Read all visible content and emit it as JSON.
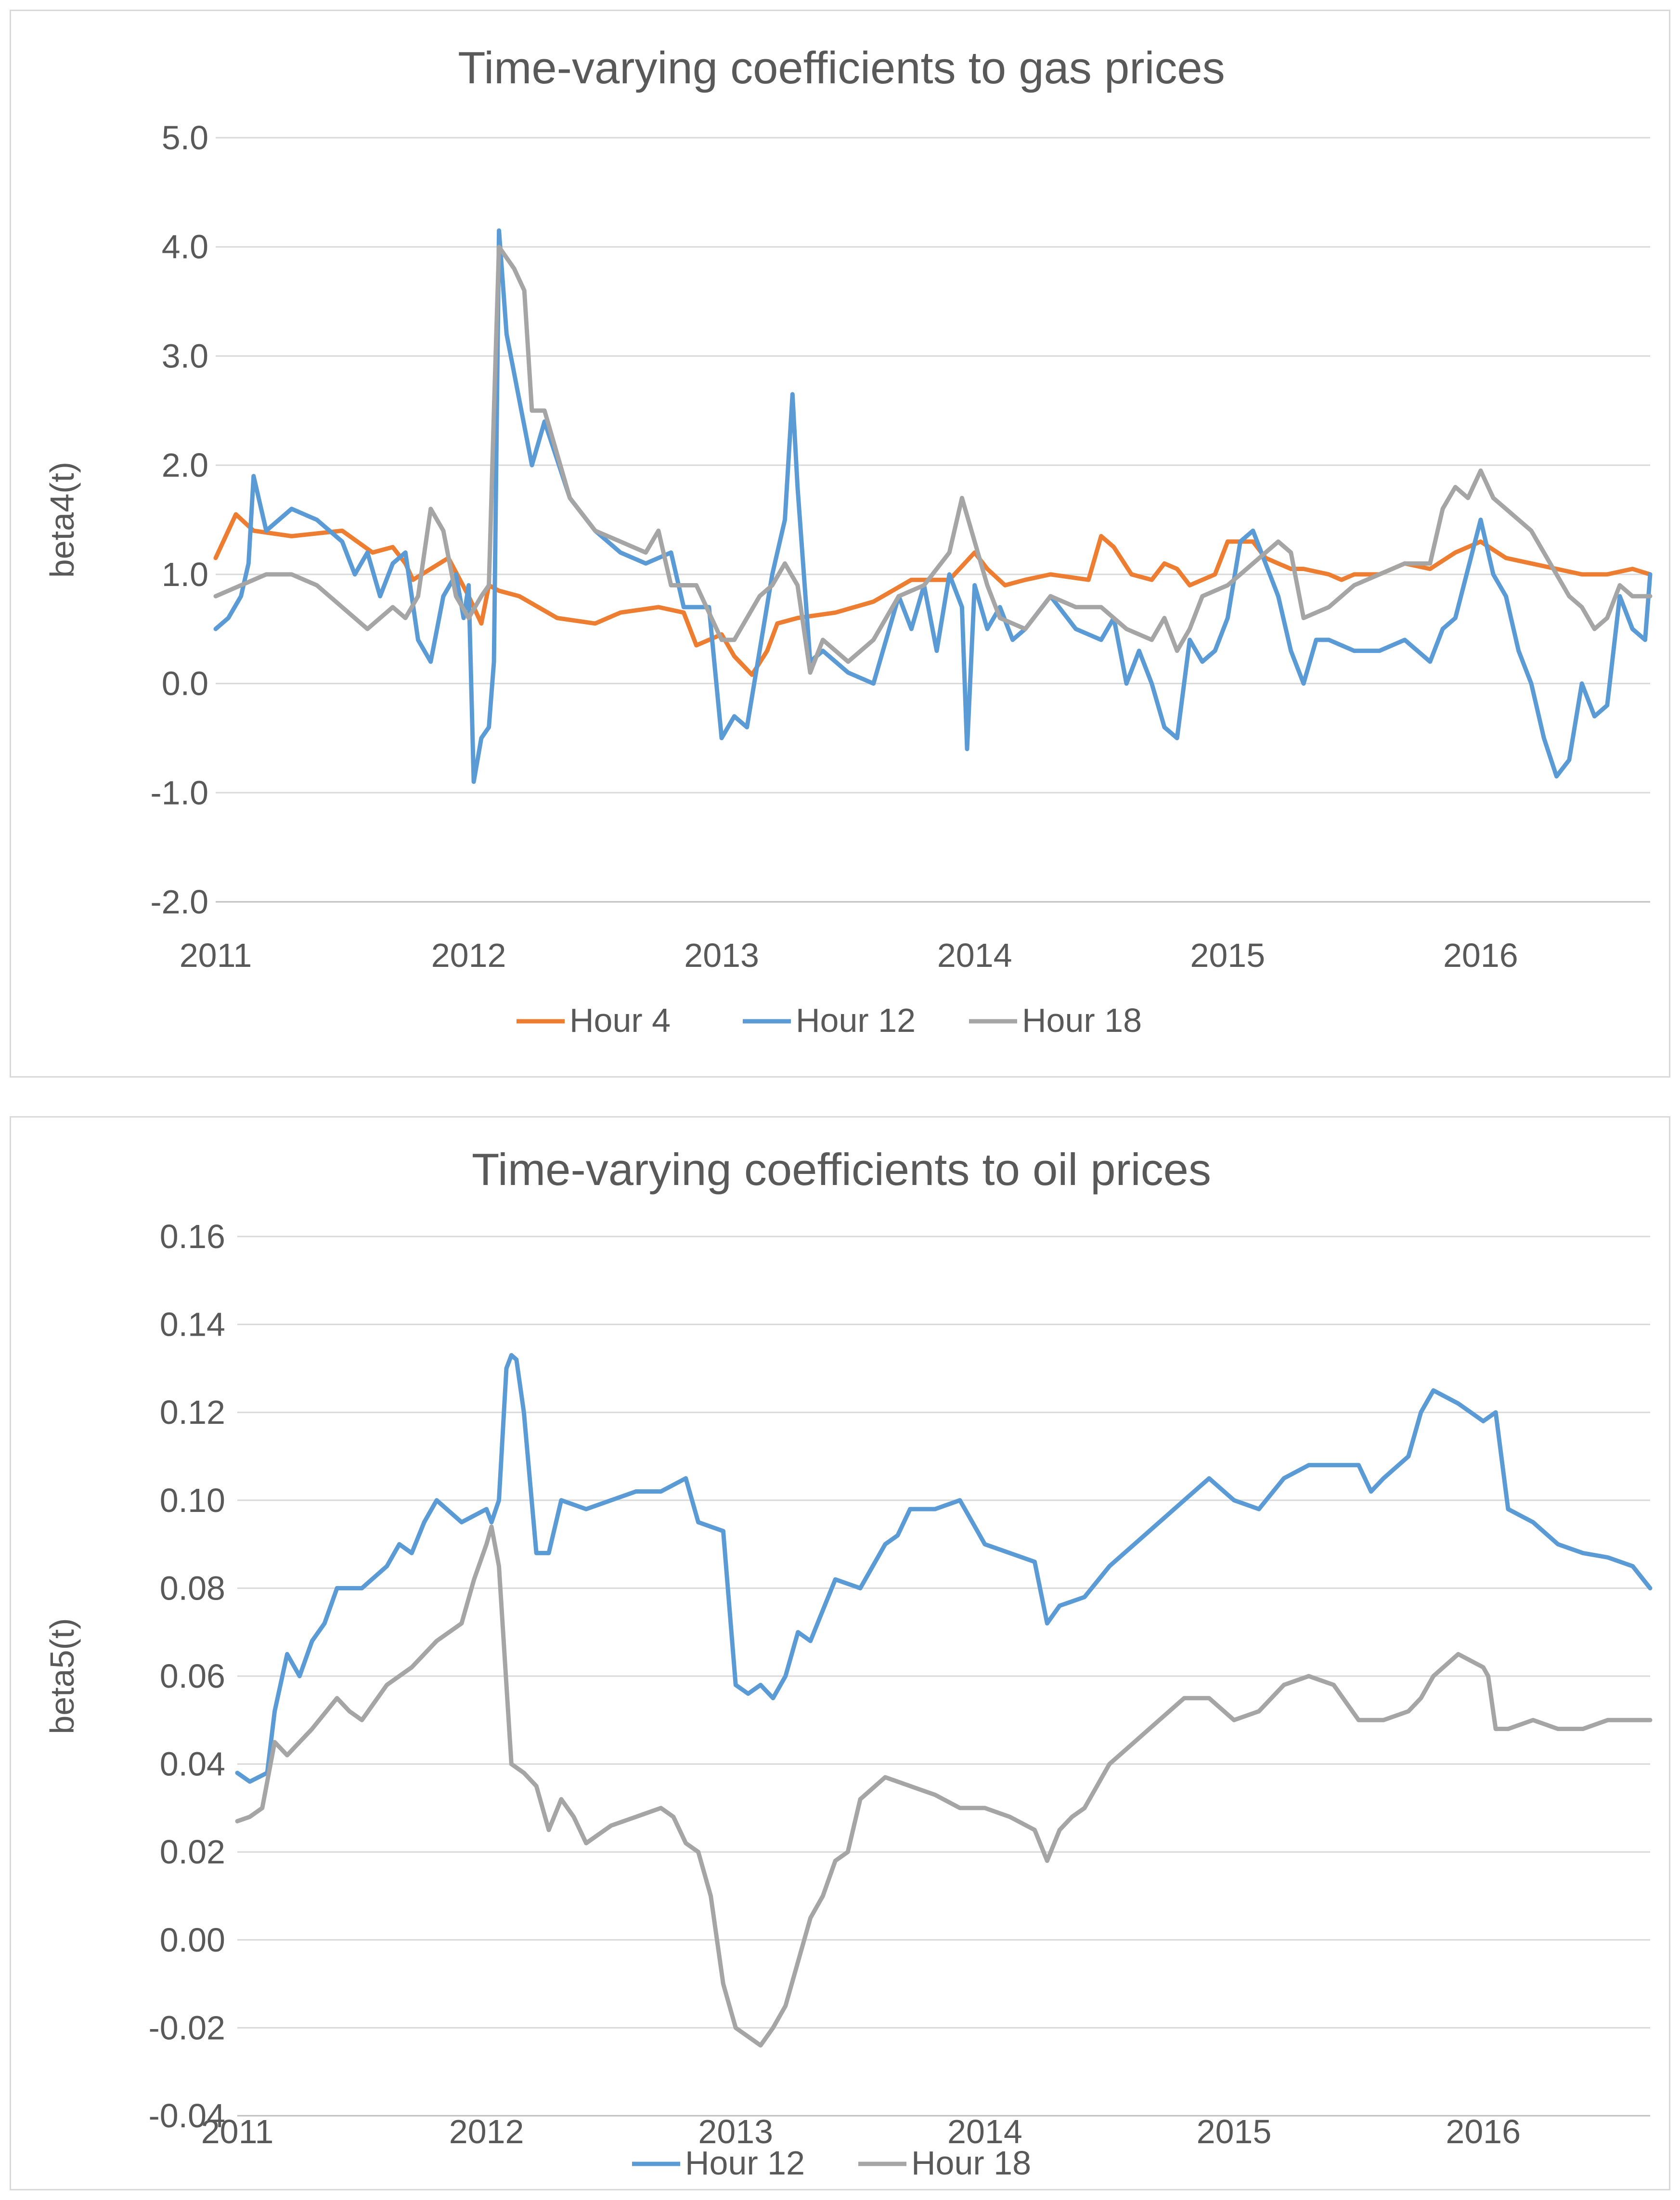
{
  "chart_data": [
    {
      "type": "line",
      "title": "Time-varying coefficients to gas prices",
      "xlabel": "",
      "ylabel": "beta4(t)",
      "ylim": [
        -2.0,
        5.0
      ],
      "yticks": [
        "5.0",
        "4.0",
        "3.0",
        "2.0",
        "1.0",
        "0.0",
        "-1.0",
        "-2.0"
      ],
      "ytick_values": [
        5,
        4,
        3,
        2,
        1,
        0,
        -1,
        -2
      ],
      "xlim": [
        2011,
        2016.67
      ],
      "xticks": [
        "2011",
        "2012",
        "2013",
        "2014",
        "2015",
        "2016"
      ],
      "xtick_values": [
        2011,
        2012,
        2013,
        2014,
        2015,
        2016
      ],
      "legend_position": "bottom",
      "series": [
        {
          "name": "Hour 4",
          "color": "#ED7D31",
          "x": [
            2011.0,
            2011.08,
            2011.15,
            2011.3,
            2011.5,
            2011.62,
            2011.7,
            2011.75,
            2011.78,
            2011.85,
            2011.92,
            2012.0,
            2012.05,
            2012.08,
            2012.12,
            2012.2,
            2012.35,
            2012.5,
            2012.6,
            2012.75,
            2012.85,
            2012.9,
            2012.95,
            2013.0,
            2013.05,
            2013.12,
            2013.18,
            2013.22,
            2013.3,
            2013.45,
            2013.6,
            2013.75,
            2013.9,
            2014.0,
            2014.05,
            2014.12,
            2014.2,
            2014.3,
            2014.45,
            2014.5,
            2014.55,
            2014.62,
            2014.7,
            2014.75,
            2014.8,
            2014.85,
            2014.9,
            2014.95,
            2015.0,
            2015.1,
            2015.15,
            2015.2,
            2015.25,
            2015.3,
            2015.4,
            2015.45,
            2015.5,
            2015.6,
            2015.7,
            2015.8,
            2015.9,
            2016.0,
            2016.1,
            2016.2,
            2016.3,
            2016.4,
            2016.5,
            2016.6,
            2016.67
          ],
          "y": [
            1.15,
            1.55,
            1.4,
            1.35,
            1.4,
            1.2,
            1.25,
            1.1,
            0.95,
            1.05,
            1.15,
            0.8,
            0.55,
            0.9,
            0.85,
            0.8,
            0.6,
            0.55,
            0.65,
            0.7,
            0.65,
            0.35,
            0.4,
            0.45,
            0.25,
            0.08,
            0.3,
            0.55,
            0.6,
            0.65,
            0.75,
            0.95,
            0.95,
            1.2,
            1.05,
            0.9,
            0.95,
            1.0,
            0.95,
            1.35,
            1.25,
            1.0,
            0.95,
            1.1,
            1.05,
            0.9,
            0.95,
            1.0,
            1.3,
            1.3,
            1.15,
            1.1,
            1.05,
            1.05,
            1.0,
            0.95,
            1.0,
            1.0,
            1.1,
            1.05,
            1.2,
            1.3,
            1.15,
            1.1,
            1.05,
            1.0,
            1.0,
            1.05,
            1.0
          ]
        },
        {
          "name": "Hour 12",
          "color": "#5B9BD5",
          "x": [
            2011.0,
            2011.05,
            2011.1,
            2011.13,
            2011.15,
            2011.2,
            2011.3,
            2011.4,
            2011.5,
            2011.55,
            2011.6,
            2011.65,
            2011.7,
            2011.75,
            2011.8,
            2011.85,
            2011.9,
            2011.95,
            2011.98,
            2012.0,
            2012.02,
            2012.05,
            2012.08,
            2012.1,
            2012.12,
            2012.15,
            2012.2,
            2012.25,
            2012.3,
            2012.4,
            2012.5,
            2012.6,
            2012.7,
            2012.8,
            2012.85,
            2012.9,
            2012.95,
            2013.0,
            2013.05,
            2013.1,
            2013.15,
            2013.2,
            2013.25,
            2013.28,
            2013.3,
            2013.35,
            2013.4,
            2013.5,
            2013.6,
            2013.7,
            2013.75,
            2013.8,
            2013.85,
            2013.9,
            2013.95,
            2013.97,
            2014.0,
            2014.05,
            2014.1,
            2014.15,
            2014.2,
            2014.3,
            2014.4,
            2014.5,
            2014.55,
            2014.6,
            2014.65,
            2014.7,
            2014.75,
            2014.8,
            2014.85,
            2014.9,
            2014.95,
            2015.0,
            2015.05,
            2015.1,
            2015.15,
            2015.2,
            2015.25,
            2015.3,
            2015.35,
            2015.4,
            2015.5,
            2015.6,
            2015.7,
            2015.8,
            2015.85,
            2015.9,
            2016.0,
            2016.05,
            2016.1,
            2016.15,
            2016.2,
            2016.25,
            2016.3,
            2016.35,
            2016.4,
            2016.45,
            2016.5,
            2016.55,
            2016.6,
            2016.65,
            2016.67
          ],
          "y": [
            0.5,
            0.6,
            0.8,
            1.1,
            1.9,
            1.4,
            1.6,
            1.5,
            1.3,
            1.0,
            1.2,
            0.8,
            1.1,
            1.2,
            0.4,
            0.2,
            0.8,
            1.0,
            0.6,
            0.9,
            -0.9,
            -0.5,
            -0.4,
            0.2,
            4.15,
            3.2,
            2.6,
            2.0,
            2.4,
            1.7,
            1.4,
            1.2,
            1.1,
            1.2,
            0.7,
            0.7,
            0.7,
            -0.5,
            -0.3,
            -0.4,
            0.3,
            1.0,
            1.5,
            2.65,
            1.8,
            0.2,
            0.3,
            0.1,
            0.0,
            0.8,
            0.5,
            0.9,
            0.3,
            1.0,
            0.7,
            -0.6,
            0.9,
            0.5,
            0.7,
            0.4,
            0.5,
            0.8,
            0.5,
            0.4,
            0.6,
            0.0,
            0.3,
            0.0,
            -0.4,
            -0.5,
            0.4,
            0.2,
            0.3,
            0.6,
            1.3,
            1.4,
            1.1,
            0.8,
            0.3,
            0.0,
            0.4,
            0.4,
            0.3,
            0.3,
            0.4,
            0.2,
            0.5,
            0.6,
            1.5,
            1.0,
            0.8,
            0.3,
            0.0,
            -0.5,
            -0.85,
            -0.7,
            0.0,
            -0.3,
            -0.2,
            0.8,
            0.5,
            0.4,
            1.0
          ]
        },
        {
          "name": "Hour 18",
          "color": "#A5A5A5",
          "x": [
            2011.0,
            2011.1,
            2011.2,
            2011.3,
            2011.4,
            2011.5,
            2011.6,
            2011.7,
            2011.75,
            2011.8,
            2011.85,
            2011.9,
            2011.95,
            2012.0,
            2012.05,
            2012.08,
            2012.1,
            2012.12,
            2012.18,
            2012.22,
            2012.25,
            2012.3,
            2012.4,
            2012.5,
            2012.6,
            2012.7,
            2012.75,
            2012.8,
            2012.9,
            2013.0,
            2013.05,
            2013.1,
            2013.15,
            2013.2,
            2013.25,
            2013.3,
            2013.35,
            2013.4,
            2013.5,
            2013.6,
            2013.7,
            2013.8,
            2013.9,
            2013.95,
            2014.0,
            2014.05,
            2014.1,
            2014.2,
            2014.3,
            2014.4,
            2014.5,
            2014.6,
            2014.7,
            2014.75,
            2014.8,
            2014.85,
            2014.9,
            2015.0,
            2015.05,
            2015.1,
            2015.2,
            2015.25,
            2015.3,
            2015.4,
            2015.5,
            2015.6,
            2015.7,
            2015.75,
            2015.8,
            2015.85,
            2015.9,
            2015.95,
            2016.0,
            2016.05,
            2016.1,
            2016.2,
            2016.3,
            2016.35,
            2016.4,
            2016.45,
            2016.5,
            2016.55,
            2016.6,
            2016.67
          ],
          "y": [
            0.8,
            0.9,
            1.0,
            1.0,
            0.9,
            0.7,
            0.5,
            0.7,
            0.6,
            0.8,
            1.6,
            1.4,
            0.8,
            0.6,
            0.8,
            0.9,
            2.5,
            4.0,
            3.8,
            3.6,
            2.5,
            2.5,
            1.7,
            1.4,
            1.3,
            1.2,
            1.4,
            0.9,
            0.9,
            0.4,
            0.4,
            0.6,
            0.8,
            0.9,
            1.1,
            0.9,
            0.1,
            0.4,
            0.2,
            0.4,
            0.8,
            0.9,
            1.2,
            1.7,
            1.3,
            0.9,
            0.6,
            0.5,
            0.8,
            0.7,
            0.7,
            0.5,
            0.4,
            0.6,
            0.3,
            0.5,
            0.8,
            0.9,
            1.0,
            1.1,
            1.3,
            1.2,
            0.6,
            0.7,
            0.9,
            1.0,
            1.1,
            1.1,
            1.1,
            1.6,
            1.8,
            1.7,
            1.95,
            1.7,
            1.6,
            1.4,
            1.0,
            0.8,
            0.7,
            0.5,
            0.6,
            0.9,
            0.8,
            0.8
          ]
        }
      ]
    },
    {
      "type": "line",
      "title": "Time-varying coefficients to oil prices",
      "xlabel": "",
      "ylabel": "beta5(t)",
      "ylim": [
        -0.04,
        0.16
      ],
      "yticks": [
        "0.16",
        "0.14",
        "0.12",
        "0.10",
        "0.08",
        "0.06",
        "0.04",
        "0.02",
        "0.00",
        "-0.02",
        "-0.04"
      ],
      "ytick_values": [
        0.16,
        0.14,
        0.12,
        0.1,
        0.08,
        0.06,
        0.04,
        0.02,
        0.0,
        -0.02,
        -0.04
      ],
      "xlim": [
        2011,
        2016.67
      ],
      "xticks": [
        "2011",
        "2012",
        "2013",
        "2014",
        "2015",
        "2016"
      ],
      "xtick_values": [
        2011,
        2012,
        2013,
        2014,
        2015,
        2016
      ],
      "legend_position": "bottom",
      "series": [
        {
          "name": "Hour 12",
          "color": "#5B9BD5",
          "x": [
            2011.0,
            2011.05,
            2011.12,
            2011.15,
            2011.2,
            2011.25,
            2011.3,
            2011.35,
            2011.4,
            2011.5,
            2011.6,
            2011.65,
            2011.7,
            2011.75,
            2011.8,
            2011.9,
            2012.0,
            2012.02,
            2012.05,
            2012.08,
            2012.1,
            2012.12,
            2012.15,
            2012.2,
            2012.25,
            2012.3,
            2012.4,
            2012.5,
            2012.6,
            2012.7,
            2012.8,
            2012.85,
            2012.9,
            2012.95,
            2013.0,
            2013.05,
            2013.1,
            2013.15,
            2013.2,
            2013.25,
            2013.3,
            2013.35,
            2013.4,
            2013.5,
            2013.6,
            2013.65,
            2013.7,
            2013.8,
            2013.9,
            2013.95,
            2014.0,
            2014.1,
            2014.2,
            2014.25,
            2014.3,
            2014.4,
            2014.5,
            2014.6,
            2014.7,
            2014.8,
            2014.9,
            2015.0,
            2015.1,
            2015.2,
            2015.3,
            2015.4,
            2015.5,
            2015.55,
            2015.6,
            2015.7,
            2015.75,
            2015.8,
            2015.9,
            2016.0,
            2016.05,
            2016.1,
            2016.2,
            2016.3,
            2016.4,
            2016.5,
            2016.6,
            2016.67
          ],
          "y": [
            0.038,
            0.036,
            0.038,
            0.052,
            0.065,
            0.06,
            0.068,
            0.072,
            0.08,
            0.08,
            0.085,
            0.09,
            0.088,
            0.095,
            0.1,
            0.095,
            0.098,
            0.095,
            0.1,
            0.13,
            0.133,
            0.132,
            0.12,
            0.088,
            0.088,
            0.1,
            0.098,
            0.1,
            0.102,
            0.102,
            0.105,
            0.095,
            0.094,
            0.093,
            0.058,
            0.056,
            0.058,
            0.055,
            0.06,
            0.07,
            0.068,
            0.075,
            0.082,
            0.08,
            0.09,
            0.092,
            0.098,
            0.098,
            0.1,
            0.095,
            0.09,
            0.088,
            0.086,
            0.072,
            0.076,
            0.078,
            0.085,
            0.09,
            0.095,
            0.1,
            0.105,
            0.1,
            0.098,
            0.105,
            0.108,
            0.108,
            0.108,
            0.102,
            0.105,
            0.11,
            0.12,
            0.125,
            0.122,
            0.118,
            0.12,
            0.098,
            0.095,
            0.09,
            0.088,
            0.087,
            0.085,
            0.08
          ]
        },
        {
          "name": "Hour 18",
          "color": "#A5A5A5",
          "x": [
            2011.0,
            2011.05,
            2011.1,
            2011.15,
            2011.2,
            2011.3,
            2011.4,
            2011.45,
            2011.5,
            2011.6,
            2011.7,
            2011.8,
            2011.9,
            2011.95,
            2012.0,
            2012.02,
            2012.05,
            2012.1,
            2012.15,
            2012.2,
            2012.25,
            2012.3,
            2012.35,
            2012.4,
            2012.5,
            2012.6,
            2012.7,
            2012.75,
            2012.8,
            2012.85,
            2012.9,
            2012.95,
            2013.0,
            2013.05,
            2013.1,
            2013.15,
            2013.2,
            2013.25,
            2013.3,
            2013.35,
            2013.4,
            2013.45,
            2013.5,
            2013.6,
            2013.7,
            2013.8,
            2013.9,
            2014.0,
            2014.1,
            2014.2,
            2014.25,
            2014.3,
            2014.35,
            2014.4,
            2014.5,
            2014.6,
            2014.7,
            2014.8,
            2014.9,
            2015.0,
            2015.1,
            2015.2,
            2015.3,
            2015.4,
            2015.5,
            2015.6,
            2015.7,
            2015.75,
            2015.8,
            2015.9,
            2016.0,
            2016.02,
            2016.05,
            2016.1,
            2016.2,
            2016.3,
            2016.4,
            2016.5,
            2016.6,
            2016.67
          ],
          "y": [
            0.027,
            0.028,
            0.03,
            0.045,
            0.042,
            0.048,
            0.055,
            0.052,
            0.05,
            0.058,
            0.062,
            0.068,
            0.072,
            0.082,
            0.09,
            0.094,
            0.085,
            0.04,
            0.038,
            0.035,
            0.025,
            0.032,
            0.028,
            0.022,
            0.026,
            0.028,
            0.03,
            0.028,
            0.022,
            0.02,
            0.01,
            -0.01,
            -0.02,
            -0.022,
            -0.024,
            -0.02,
            -0.015,
            -0.005,
            0.005,
            0.01,
            0.018,
            0.02,
            0.032,
            0.037,
            0.035,
            0.033,
            0.03,
            0.03,
            0.028,
            0.025,
            0.018,
            0.025,
            0.028,
            0.03,
            0.04,
            0.045,
            0.05,
            0.055,
            0.055,
            0.05,
            0.052,
            0.058,
            0.06,
            0.058,
            0.05,
            0.05,
            0.052,
            0.055,
            0.06,
            0.065,
            0.062,
            0.06,
            0.048,
            0.048,
            0.05,
            0.048,
            0.048,
            0.05,
            0.05,
            0.05
          ]
        }
      ]
    }
  ]
}
